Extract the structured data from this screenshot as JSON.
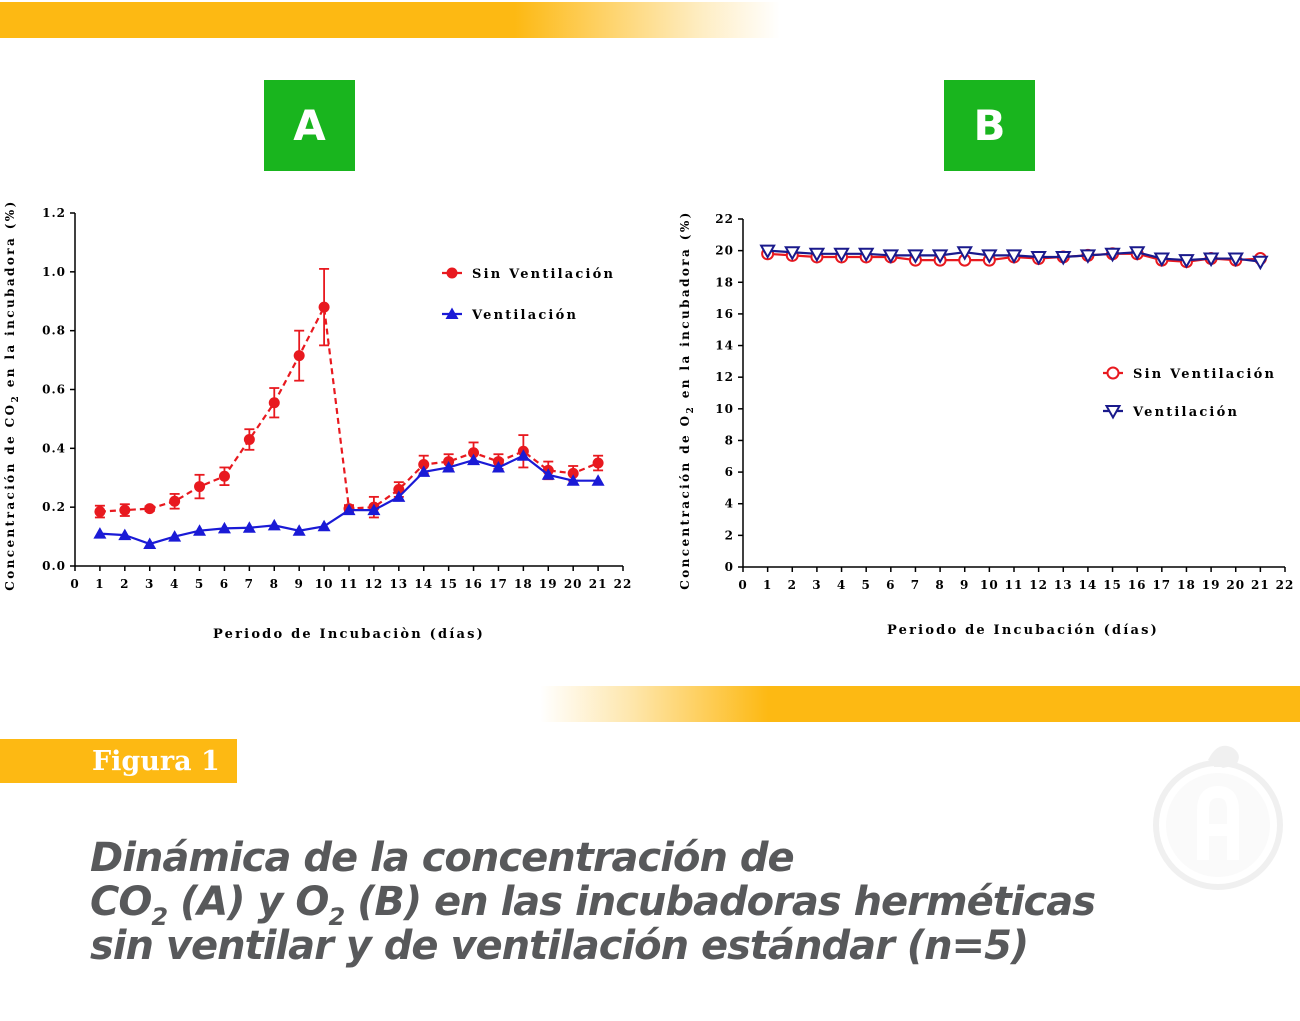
{
  "panels": {
    "a": "A",
    "b": "B"
  },
  "figure_label": "Figura 1",
  "caption": {
    "line1": "Dinámica de la concentración de",
    "line2_a": "CO",
    "line2_sub1": "2",
    "line2_b": " (A) y O",
    "line2_sub2": "2",
    "line2_c": " (B) en las incubadoras herméticas",
    "line3": "sin ventilar y de ventilación estándar (n=5)"
  },
  "colors": {
    "band": "#fdb913",
    "panel": "#19b51e",
    "red": "#e8191f",
    "blue": "#1a1ad6",
    "navy": "#1a1a8c",
    "caption": "#58595b"
  },
  "logo_icon": "hen-clock-logo-icon",
  "chart_data": [
    {
      "type": "line",
      "ylabel_pre": "Concentración de CO",
      "ylabel_sub": "2",
      "ylabel_post": " en la incubadora (%)",
      "xlabel": "Periodo de Incubaciòn (días)",
      "xlim": [
        0,
        22
      ],
      "ylim": [
        0,
        1.2
      ],
      "xticks": [
        0,
        1,
        2,
        3,
        4,
        5,
        6,
        7,
        8,
        9,
        10,
        11,
        12,
        13,
        14,
        15,
        16,
        17,
        18,
        19,
        20,
        21,
        22
      ],
      "yticks": [
        0,
        0.2,
        0.4,
        0.6,
        0.8,
        1.0,
        1.2
      ],
      "ytick_labels": [
        "0.0",
        "0.2",
        "0.4",
        "0.6",
        "0.8",
        "1.0",
        "1.2"
      ],
      "legend_position": "top-right",
      "series": [
        {
          "name": "Sin Ventilación",
          "style": "dashed",
          "marker": "circle-filled",
          "color": "#e8191f",
          "x": [
            1,
            2,
            3,
            4,
            5,
            6,
            7,
            8,
            9,
            10,
            11,
            12,
            13,
            14,
            15,
            16,
            17,
            18,
            19,
            20,
            21
          ],
          "y": [
            0.185,
            0.19,
            0.195,
            0.22,
            0.27,
            0.305,
            0.43,
            0.555,
            0.715,
            0.88,
            0.195,
            0.2,
            0.26,
            0.345,
            0.355,
            0.385,
            0.355,
            0.39,
            0.325,
            0.315,
            0.35
          ],
          "err": [
            0.02,
            0.02,
            0.008,
            0.025,
            0.04,
            0.03,
            0.035,
            0.05,
            0.085,
            0.13,
            0.012,
            0.035,
            0.025,
            0.03,
            0.025,
            0.035,
            0.025,
            0.055,
            0.03,
            0.025,
            0.025
          ]
        },
        {
          "name": "Ventilación",
          "style": "solid",
          "marker": "triangle-up-filled",
          "color": "#1a1ad6",
          "x": [
            1,
            2,
            3,
            4,
            5,
            6,
            7,
            8,
            9,
            10,
            11,
            12,
            13,
            14,
            15,
            16,
            17,
            18,
            19,
            20,
            21
          ],
          "y": [
            0.11,
            0.105,
            0.075,
            0.1,
            0.12,
            0.128,
            0.13,
            0.138,
            0.12,
            0.135,
            0.19,
            0.19,
            0.235,
            0.32,
            0.335,
            0.36,
            0.335,
            0.375,
            0.31,
            0.29,
            0.29
          ]
        }
      ]
    },
    {
      "type": "line",
      "ylabel_pre": "Concentración de O",
      "ylabel_sub": "2",
      "ylabel_post": " en la incubadora (%)",
      "xlabel": "Periodo de Incubación (días)",
      "xlim": [
        0,
        22
      ],
      "ylim": [
        0,
        22
      ],
      "xticks": [
        0,
        1,
        2,
        3,
        4,
        5,
        6,
        7,
        8,
        9,
        10,
        11,
        12,
        13,
        14,
        15,
        16,
        17,
        18,
        19,
        20,
        21,
        22
      ],
      "yticks": [
        0,
        2,
        4,
        6,
        8,
        10,
        12,
        14,
        16,
        18,
        20,
        22
      ],
      "ytick_labels": [
        "0",
        "2",
        "4",
        "6",
        "8",
        "10",
        "12",
        "14",
        "16",
        "18",
        "20",
        "22"
      ],
      "legend_position": "middle-right",
      "series": [
        {
          "name": "Sin Ventilación",
          "style": "solid",
          "marker": "circle-open",
          "color": "#e8191f",
          "x": [
            1,
            2,
            3,
            4,
            5,
            6,
            7,
            8,
            9,
            10,
            11,
            12,
            13,
            14,
            15,
            16,
            17,
            18,
            19,
            20,
            21
          ],
          "y": [
            19.8,
            19.7,
            19.6,
            19.6,
            19.6,
            19.6,
            19.4,
            19.4,
            19.4,
            19.4,
            19.6,
            19.5,
            19.6,
            19.7,
            19.8,
            19.8,
            19.4,
            19.3,
            19.5,
            19.4,
            19.5
          ]
        },
        {
          "name": "Ventilación",
          "style": "solid",
          "marker": "triangle-down-open",
          "color": "#1a1a8c",
          "x": [
            1,
            2,
            3,
            4,
            5,
            6,
            7,
            8,
            9,
            10,
            11,
            12,
            13,
            14,
            15,
            16,
            17,
            18,
            19,
            20,
            21
          ],
          "y": [
            20.0,
            19.9,
            19.8,
            19.8,
            19.8,
            19.7,
            19.7,
            19.7,
            19.9,
            19.7,
            19.7,
            19.6,
            19.6,
            19.7,
            19.8,
            19.9,
            19.5,
            19.4,
            19.5,
            19.5,
            19.3
          ]
        }
      ]
    }
  ]
}
